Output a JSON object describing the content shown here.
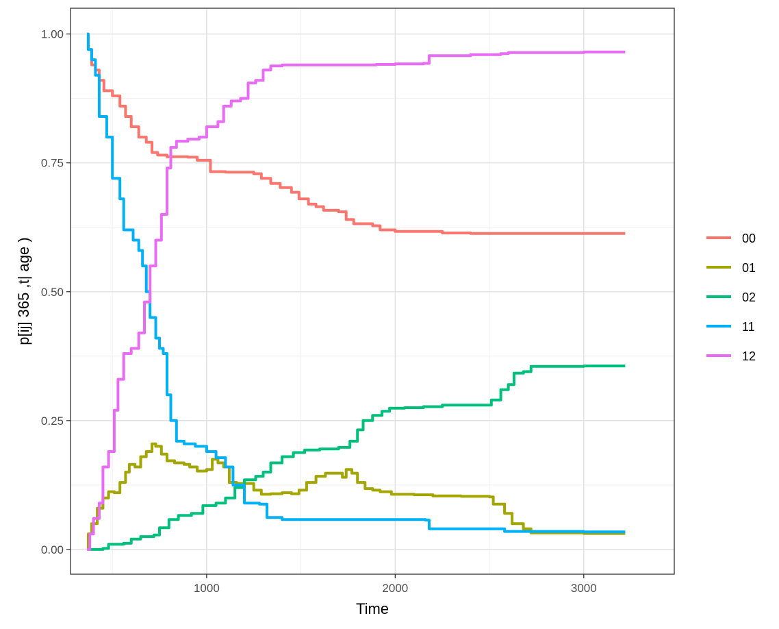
{
  "chart_data": {
    "type": "line",
    "xlabel": "Time",
    "ylabel": "p[ij] 365 ,t| age )",
    "xlim": [
      278,
      3480
    ],
    "ylim": [
      -0.048,
      1.05
    ],
    "x_ticks": [
      1000,
      2000,
      3000
    ],
    "x_tick_labels": [
      "1000",
      "2000",
      "3000"
    ],
    "y_ticks": [
      0,
      0.25,
      0.5,
      0.75,
      1.0
    ],
    "y_tick_labels": [
      "0.00",
      "0.25",
      "0.50",
      "0.75",
      "1.00"
    ],
    "grid": true,
    "legend_position": "right",
    "series": [
      {
        "name": "00",
        "color": "#F8766D",
        "points": [
          [
            365,
            1.0
          ],
          [
            372,
            0.97
          ],
          [
            390,
            0.94
          ],
          [
            410,
            0.93
          ],
          [
            430,
            0.91
          ],
          [
            455,
            0.89
          ],
          [
            500,
            0.88
          ],
          [
            540,
            0.86
          ],
          [
            570,
            0.84
          ],
          [
            600,
            0.82
          ],
          [
            640,
            0.8
          ],
          [
            680,
            0.79
          ],
          [
            710,
            0.77
          ],
          [
            740,
            0.765
          ],
          [
            790,
            0.762
          ],
          [
            900,
            0.761
          ],
          [
            950,
            0.755
          ],
          [
            1020,
            0.733
          ],
          [
            1100,
            0.732
          ],
          [
            1250,
            0.729
          ],
          [
            1290,
            0.72
          ],
          [
            1340,
            0.71
          ],
          [
            1390,
            0.702
          ],
          [
            1450,
            0.693
          ],
          [
            1490,
            0.68
          ],
          [
            1540,
            0.67
          ],
          [
            1580,
            0.665
          ],
          [
            1620,
            0.658
          ],
          [
            1700,
            0.655
          ],
          [
            1740,
            0.64
          ],
          [
            1780,
            0.632
          ],
          [
            1880,
            0.628
          ],
          [
            1920,
            0.62
          ],
          [
            2000,
            0.617
          ],
          [
            2250,
            0.614
          ],
          [
            2400,
            0.613
          ],
          [
            3000,
            0.613
          ],
          [
            3220,
            0.613
          ]
        ]
      },
      {
        "name": "01",
        "color": "#A3A500",
        "points": [
          [
            365,
            0.0
          ],
          [
            372,
            0.03
          ],
          [
            390,
            0.05
          ],
          [
            420,
            0.08
          ],
          [
            450,
            0.1
          ],
          [
            480,
            0.112
          ],
          [
            510,
            0.11
          ],
          [
            540,
            0.13
          ],
          [
            570,
            0.15
          ],
          [
            590,
            0.165
          ],
          [
            620,
            0.16
          ],
          [
            650,
            0.18
          ],
          [
            680,
            0.19
          ],
          [
            710,
            0.205
          ],
          [
            730,
            0.2
          ],
          [
            760,
            0.185
          ],
          [
            790,
            0.172
          ],
          [
            830,
            0.168
          ],
          [
            880,
            0.165
          ],
          [
            910,
            0.16
          ],
          [
            950,
            0.152
          ],
          [
            1000,
            0.155
          ],
          [
            1030,
            0.175
          ],
          [
            1060,
            0.168
          ],
          [
            1090,
            0.16
          ],
          [
            1120,
            0.13
          ],
          [
            1160,
            0.128
          ],
          [
            1210,
            0.128
          ],
          [
            1250,
            0.115
          ],
          [
            1290,
            0.107
          ],
          [
            1340,
            0.108
          ],
          [
            1400,
            0.11
          ],
          [
            1450,
            0.108
          ],
          [
            1490,
            0.115
          ],
          [
            1530,
            0.13
          ],
          [
            1580,
            0.142
          ],
          [
            1630,
            0.148
          ],
          [
            1680,
            0.148
          ],
          [
            1720,
            0.14
          ],
          [
            1740,
            0.155
          ],
          [
            1770,
            0.148
          ],
          [
            1800,
            0.13
          ],
          [
            1840,
            0.118
          ],
          [
            1880,
            0.115
          ],
          [
            1920,
            0.112
          ],
          [
            1980,
            0.107
          ],
          [
            2100,
            0.106
          ],
          [
            2200,
            0.104
          ],
          [
            2350,
            0.103
          ],
          [
            2500,
            0.102
          ],
          [
            2520,
            0.088
          ],
          [
            2580,
            0.07
          ],
          [
            2620,
            0.05
          ],
          [
            2680,
            0.04
          ],
          [
            2720,
            0.032
          ],
          [
            3000,
            0.031
          ],
          [
            3220,
            0.031
          ]
        ]
      },
      {
        "name": "02",
        "color": "#00BF7D",
        "points": [
          [
            365,
            0.0
          ],
          [
            450,
            0.002
          ],
          [
            480,
            0.01
          ],
          [
            560,
            0.012
          ],
          [
            600,
            0.02
          ],
          [
            650,
            0.025
          ],
          [
            720,
            0.028
          ],
          [
            750,
            0.042
          ],
          [
            800,
            0.058
          ],
          [
            850,
            0.066
          ],
          [
            920,
            0.07
          ],
          [
            980,
            0.085
          ],
          [
            1050,
            0.09
          ],
          [
            1100,
            0.1
          ],
          [
            1150,
            0.12
          ],
          [
            1200,
            0.135
          ],
          [
            1260,
            0.142
          ],
          [
            1300,
            0.15
          ],
          [
            1340,
            0.168
          ],
          [
            1400,
            0.18
          ],
          [
            1460,
            0.188
          ],
          [
            1520,
            0.193
          ],
          [
            1600,
            0.195
          ],
          [
            1700,
            0.198
          ],
          [
            1760,
            0.21
          ],
          [
            1800,
            0.232
          ],
          [
            1830,
            0.25
          ],
          [
            1880,
            0.26
          ],
          [
            1930,
            0.268
          ],
          [
            1970,
            0.274
          ],
          [
            2050,
            0.275
          ],
          [
            2150,
            0.277
          ],
          [
            2250,
            0.28
          ],
          [
            2350,
            0.28
          ],
          [
            2480,
            0.28
          ],
          [
            2510,
            0.29
          ],
          [
            2560,
            0.31
          ],
          [
            2600,
            0.32
          ],
          [
            2630,
            0.342
          ],
          [
            2680,
            0.345
          ],
          [
            2720,
            0.355
          ],
          [
            3000,
            0.356
          ],
          [
            3220,
            0.356
          ]
        ]
      },
      {
        "name": "11",
        "color": "#00B0F6",
        "points": [
          [
            365,
            1.0
          ],
          [
            372,
            0.97
          ],
          [
            390,
            0.95
          ],
          [
            410,
            0.92
          ],
          [
            430,
            0.84
          ],
          [
            470,
            0.8
          ],
          [
            500,
            0.72
          ],
          [
            540,
            0.68
          ],
          [
            560,
            0.62
          ],
          [
            610,
            0.6
          ],
          [
            640,
            0.58
          ],
          [
            660,
            0.55
          ],
          [
            680,
            0.5
          ],
          [
            700,
            0.45
          ],
          [
            730,
            0.41
          ],
          [
            750,
            0.39
          ],
          [
            770,
            0.38
          ],
          [
            790,
            0.3
          ],
          [
            810,
            0.25
          ],
          [
            840,
            0.21
          ],
          [
            880,
            0.205
          ],
          [
            940,
            0.2
          ],
          [
            1000,
            0.19
          ],
          [
            1050,
            0.178
          ],
          [
            1100,
            0.16
          ],
          [
            1140,
            0.125
          ],
          [
            1200,
            0.09
          ],
          [
            1280,
            0.088
          ],
          [
            1320,
            0.062
          ],
          [
            1400,
            0.058
          ],
          [
            1600,
            0.058
          ],
          [
            2000,
            0.058
          ],
          [
            2160,
            0.057
          ],
          [
            2180,
            0.04
          ],
          [
            2400,
            0.04
          ],
          [
            2540,
            0.04
          ],
          [
            2580,
            0.035
          ],
          [
            3000,
            0.034
          ],
          [
            3220,
            0.034
          ]
        ]
      },
      {
        "name": "12",
        "color": "#E76BF3",
        "points": [
          [
            365,
            0.0
          ],
          [
            380,
            0.03
          ],
          [
            400,
            0.06
          ],
          [
            430,
            0.09
          ],
          [
            450,
            0.16
          ],
          [
            480,
            0.19
          ],
          [
            510,
            0.27
          ],
          [
            530,
            0.33
          ],
          [
            560,
            0.38
          ],
          [
            600,
            0.39
          ],
          [
            640,
            0.42
          ],
          [
            670,
            0.48
          ],
          [
            700,
            0.55
          ],
          [
            730,
            0.6
          ],
          [
            760,
            0.65
          ],
          [
            790,
            0.74
          ],
          [
            810,
            0.78
          ],
          [
            840,
            0.792
          ],
          [
            900,
            0.796
          ],
          [
            960,
            0.8
          ],
          [
            1000,
            0.82
          ],
          [
            1060,
            0.83
          ],
          [
            1090,
            0.86
          ],
          [
            1130,
            0.87
          ],
          [
            1180,
            0.875
          ],
          [
            1220,
            0.905
          ],
          [
            1260,
            0.91
          ],
          [
            1300,
            0.93
          ],
          [
            1340,
            0.938
          ],
          [
            1400,
            0.94
          ],
          [
            1600,
            0.94
          ],
          [
            1900,
            0.941
          ],
          [
            2000,
            0.942
          ],
          [
            2150,
            0.943
          ],
          [
            2180,
            0.958
          ],
          [
            2400,
            0.96
          ],
          [
            2560,
            0.962
          ],
          [
            2600,
            0.964
          ],
          [
            3000,
            0.965
          ],
          [
            3220,
            0.965
          ]
        ]
      }
    ]
  }
}
